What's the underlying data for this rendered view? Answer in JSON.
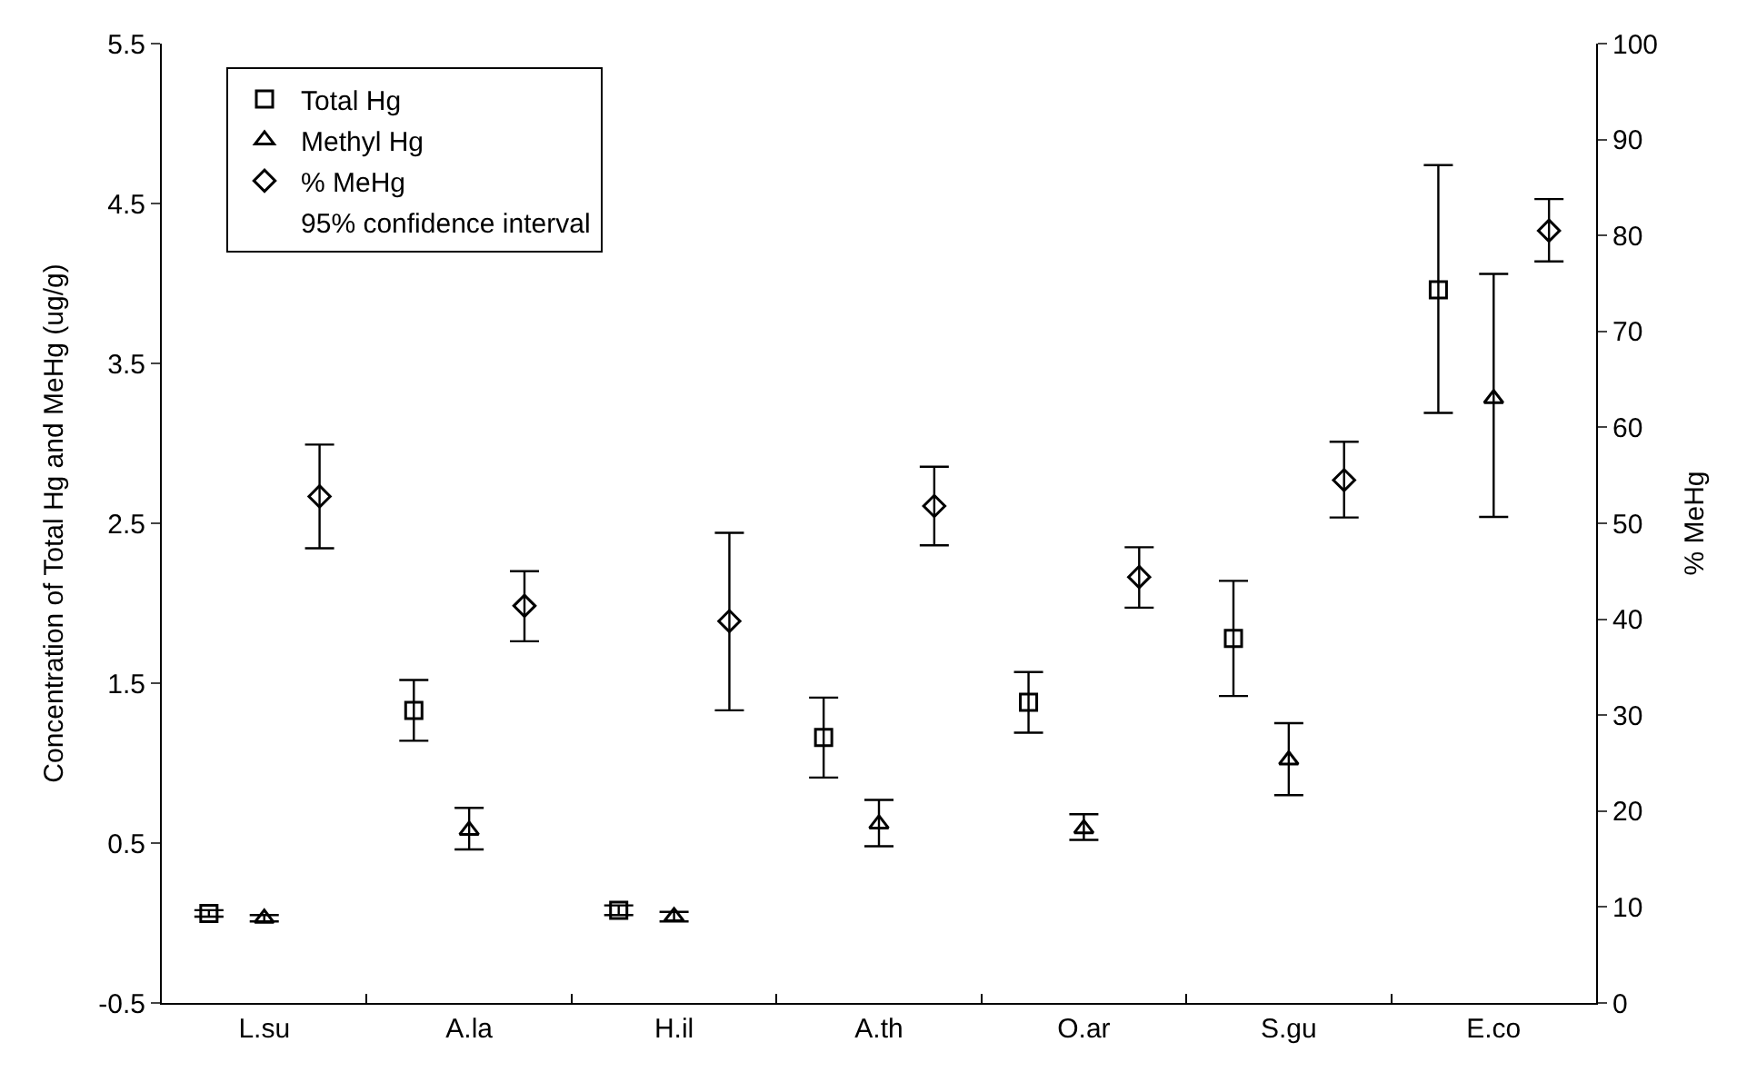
{
  "chart_data": {
    "type": "scatter",
    "ylabel": "Concentration of Total Hg and MeHg (ug/g)",
    "y2label": "% MeHg",
    "categories": [
      "L.su",
      "A.la",
      "H.il",
      "A.th",
      "O.ar",
      "S.gu",
      "E.co"
    ],
    "series": [
      {
        "name": "Total Hg",
        "color": "#000000",
        "marker": "square",
        "values": [
          0.06,
          1.33,
          0.08,
          1.16,
          1.38,
          1.78,
          3.96
        ],
        "errors": [
          [
            0.04,
            0.08
          ],
          [
            1.14,
            1.52
          ],
          [
            0.05,
            0.11
          ],
          [
            0.91,
            1.41
          ],
          [
            1.19,
            1.57
          ],
          [
            1.42,
            2.14
          ],
          [
            3.19,
            4.74
          ]
        ]
      },
      {
        "name": "Methyl Hg",
        "color": "#000000",
        "marker": "triangle",
        "values": [
          0.03,
          0.58,
          0.04,
          0.62,
          0.59,
          1.02,
          3.28
        ],
        "errors": [
          [
            0.01,
            0.05
          ],
          [
            0.46,
            0.72
          ],
          [
            0.01,
            0.07
          ],
          [
            0.48,
            0.77
          ],
          [
            0.52,
            0.68
          ],
          [
            0.8,
            1.25
          ],
          [
            2.54,
            4.06
          ]
        ]
      },
      {
        "name": "% MeHg",
        "color": "#000000",
        "marker": "diamond",
        "axis": "y2",
        "values": [
          52.8,
          41.4,
          39.8,
          51.8,
          44.4,
          54.5,
          80.5
        ],
        "errors": [
          [
            47.4,
            58.2
          ],
          [
            37.7,
            45.0
          ],
          [
            30.5,
            49.0
          ],
          [
            47.7,
            55.9
          ],
          [
            41.2,
            47.5
          ],
          [
            50.6,
            58.5
          ],
          [
            77.3,
            83.8
          ]
        ]
      }
    ],
    "annotations": [
      "95% confidence interval"
    ],
    "ylim": [
      -0.5,
      5.5
    ],
    "yticks": [
      -0.5,
      0.5,
      1.5,
      2.5,
      3.5,
      4.5,
      5.5
    ],
    "y2lim": [
      0,
      100
    ],
    "y2ticks": [
      0,
      10,
      20,
      30,
      40,
      50,
      60,
      70,
      80,
      90,
      100
    ],
    "legend": "top left"
  }
}
